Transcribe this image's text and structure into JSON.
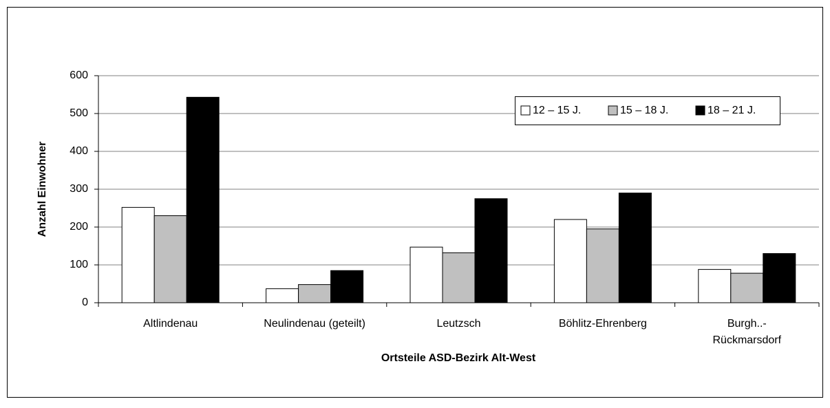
{
  "chart_data": {
    "type": "bar",
    "x_label": "Ortsteile ASD-Bezirk Alt-West",
    "y_label": "Anzahl Einwohner",
    "categories": [
      "Altlindenau",
      "Neulindenau (geteilt)",
      "Leutzsch",
      "Böhlitz-Ehrenberg",
      [
        "Burgh..-",
        "Rückmarsdorf"
      ]
    ],
    "series": [
      {
        "name": "12 – 15 J.",
        "color": "#ffffff",
        "values": [
          252,
          37,
          147,
          220,
          88
        ]
      },
      {
        "name": "15 – 18 J.",
        "color": "#c0c0c0",
        "values": [
          230,
          48,
          132,
          195,
          78
        ]
      },
      {
        "name": "18 – 21 J.",
        "color": "#000000",
        "values": [
          543,
          85,
          275,
          290,
          130
        ]
      }
    ],
    "ylim": [
      0,
      600
    ],
    "yticks": [
      0,
      100,
      200,
      300,
      400,
      500,
      600
    ],
    "grid": true,
    "legend": "upper right"
  }
}
